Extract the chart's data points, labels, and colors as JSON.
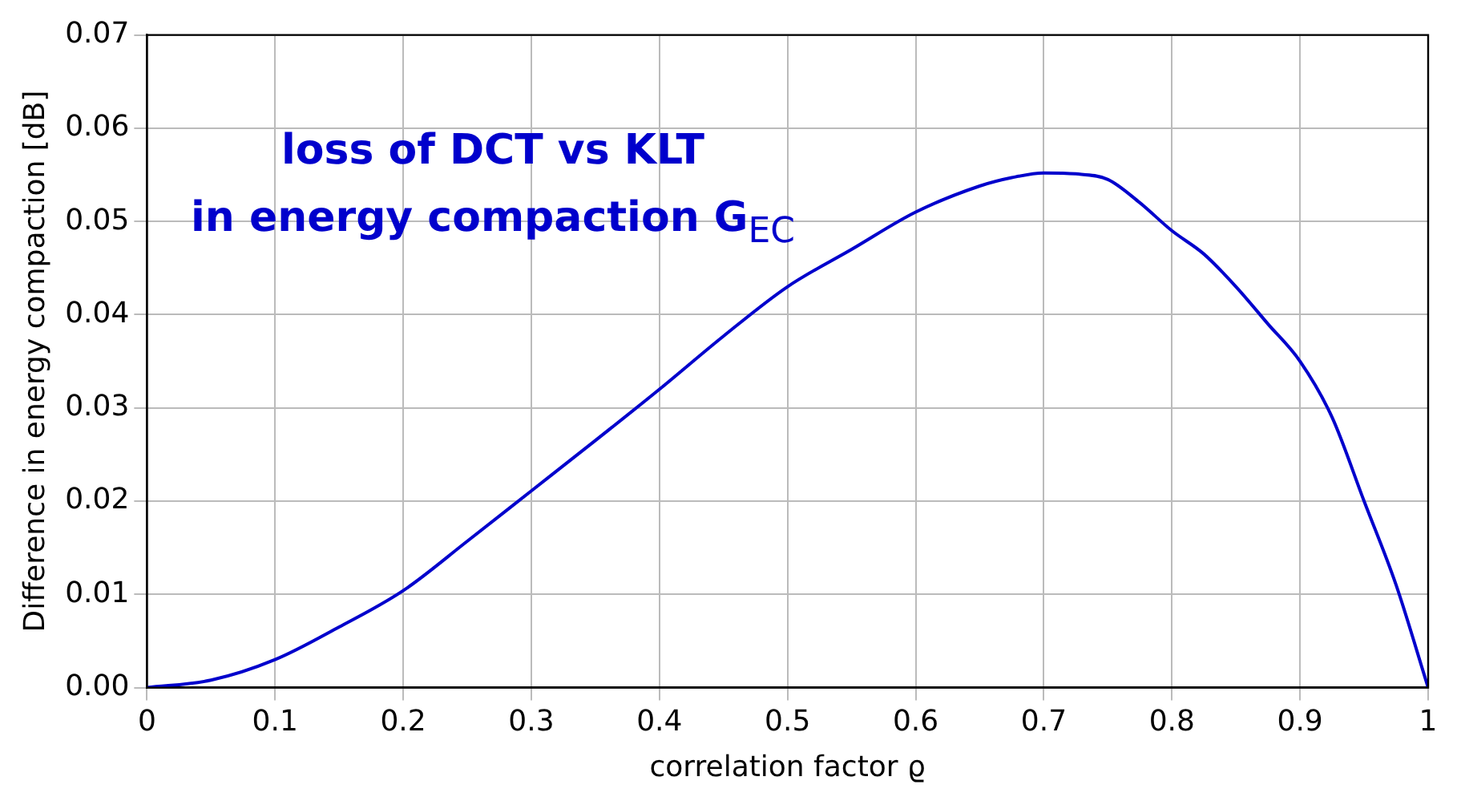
{
  "chart_data": {
    "type": "line",
    "xlabel": "correlation factor ϱ",
    "ylabel": "Difference in energy compaction [dB]",
    "annotations": [
      "loss of DCT vs KLT\nin energy compaction G$_{EC}$"
    ],
    "x": [
      0,
      0.05,
      0.1,
      0.15,
      0.2,
      0.25,
      0.3,
      0.35,
      0.4,
      0.45,
      0.5,
      0.55,
      0.6,
      0.65,
      0.675,
      0.7,
      0.725,
      0.75,
      0.775,
      0.8,
      0.825,
      0.85,
      0.875,
      0.9,
      0.925,
      0.95,
      0.975,
      1
    ],
    "series": [
      {
        "color": "#0000cc",
        "values": [
          0,
          0.0008,
          0.003,
          0.0065,
          0.0104,
          0.0157,
          0.0211,
          0.0265,
          0.032,
          0.0377,
          0.043,
          0.047,
          0.051,
          0.0538,
          0.0547,
          0.0552,
          0.0551,
          0.0545,
          0.052,
          0.049,
          0.0465,
          0.043,
          0.039,
          0.035,
          0.029,
          0.02,
          0.011,
          0
        ]
      }
    ],
    "xlim": [
      0,
      1
    ],
    "xticks": [
      0,
      0.1,
      0.2,
      0.3,
      0.4,
      0.5,
      0.6,
      0.7,
      0.8,
      0.9,
      1
    ],
    "ylim": [
      0,
      0.07
    ],
    "yticks": [
      {
        "value": 0,
        "label": "0.00"
      },
      {
        "value": 0.01,
        "label": "0.01"
      },
      {
        "value": 0.02,
        "label": "0.02"
      },
      {
        "value": 0.03,
        "label": "0.03"
      },
      {
        "value": 0.04,
        "label": "0.04"
      },
      {
        "value": 0.05,
        "label": "0.05"
      },
      {
        "value": 0.06,
        "label": "0.06"
      },
      {
        "value": 0.07,
        "label": "0.07"
      }
    ],
    "grid": true,
    "marker": "none",
    "line_style": "solid",
    "legend": false
  }
}
